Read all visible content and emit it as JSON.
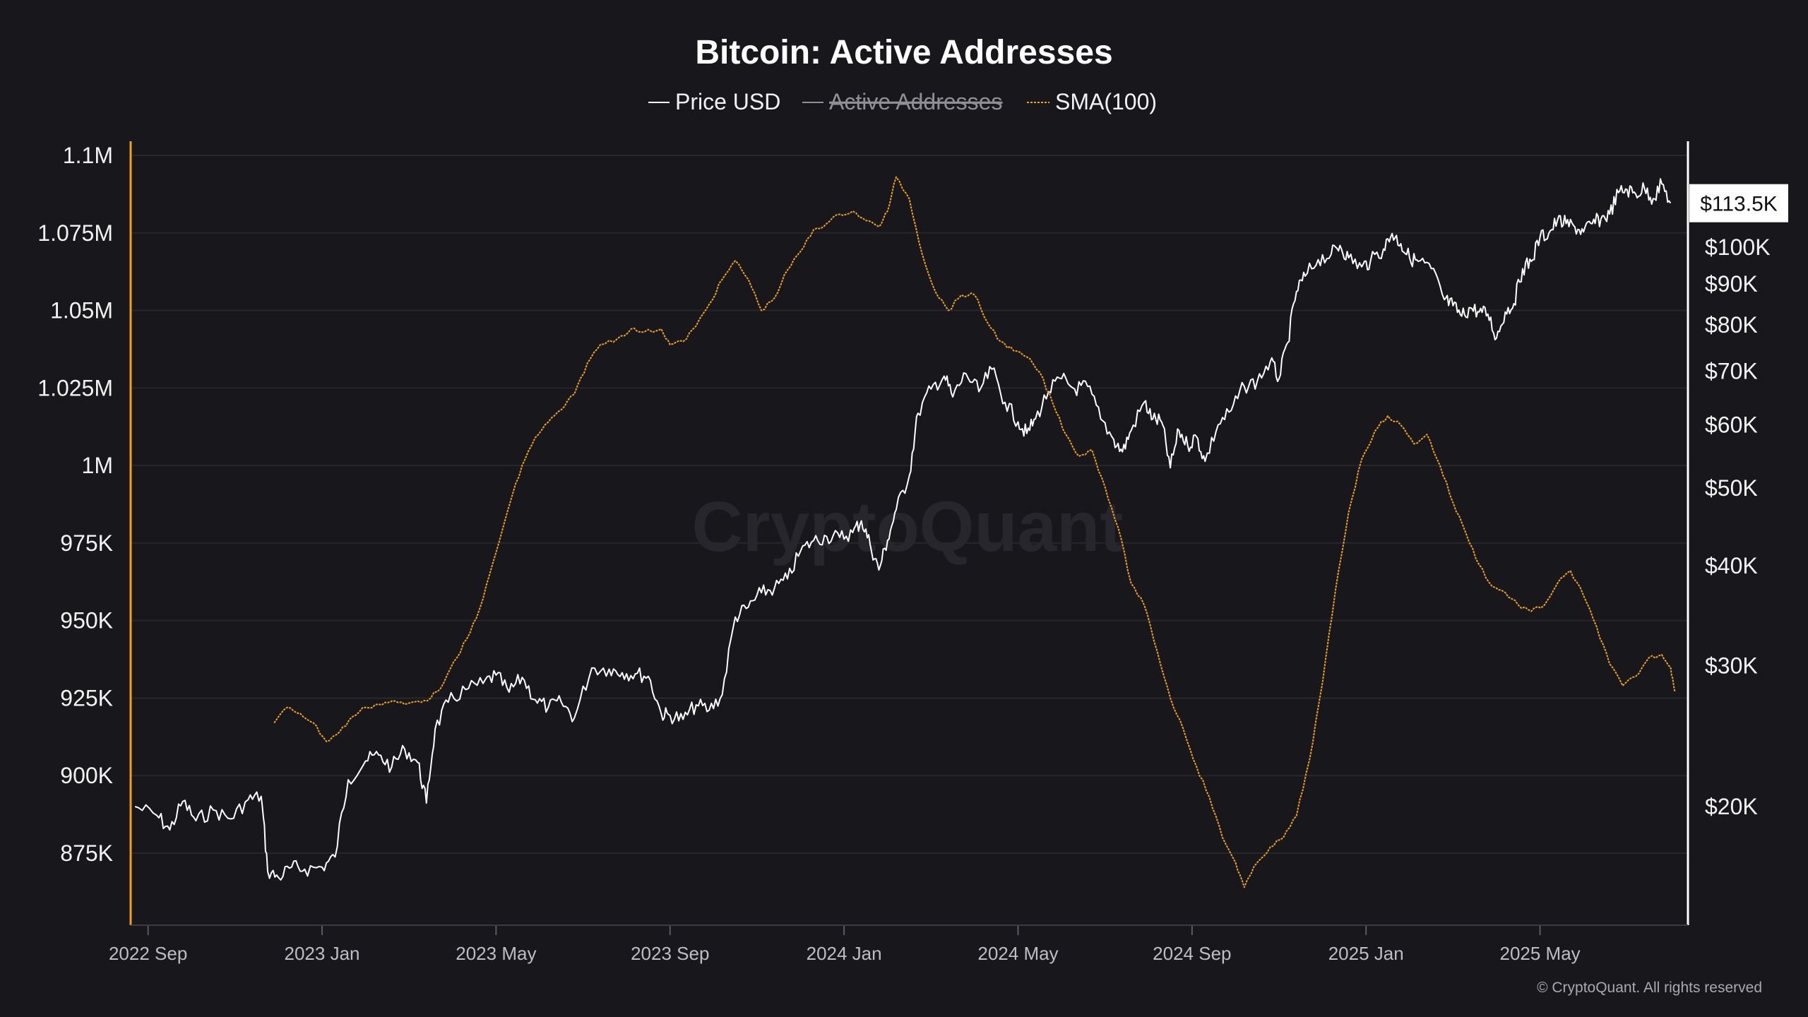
{
  "chart_data": {
    "type": "line",
    "title": "Bitcoin: Active Addresses",
    "legend": [
      {
        "label": "Price USD",
        "color": "#ffffff",
        "style": "solid",
        "hidden": false
      },
      {
        "label": "Active Addresses",
        "color": "#9a9aa2",
        "style": "solid",
        "hidden": true
      },
      {
        "label": "SMA(100)",
        "color": "#f0a020",
        "style": "dashed",
        "hidden": false
      }
    ],
    "left_axis": {
      "label": "",
      "ticks": [
        "1.1M",
        "1.075M",
        "1.05M",
        "1.025M",
        "1M",
        "975K",
        "950K",
        "925K",
        "900K",
        "875K"
      ],
      "tick_values": [
        1100000,
        1075000,
        1050000,
        1025000,
        1000000,
        975000,
        950000,
        925000,
        900000,
        875000
      ],
      "range": [
        864000,
        1100000
      ],
      "color": "#f0a020"
    },
    "right_axis": {
      "scale": "log",
      "ticks": [
        "$100K",
        "$90K",
        "$80K",
        "$70K",
        "$60K",
        "$50K",
        "$40K",
        "$30K",
        "$20K"
      ],
      "tick_values": [
        100000,
        90000,
        80000,
        70000,
        60000,
        50000,
        40000,
        30000,
        20000
      ],
      "current_value_label": "$113.5K",
      "current_value": 113500
    },
    "x_axis": {
      "ticks": [
        "2022 Sep",
        "2023 Jan",
        "2023 May",
        "2023 Sep",
        "2024 Jan",
        "2024 May",
        "2024 Sep",
        "2025 Jan",
        "2025 May"
      ],
      "tick_months": [
        0,
        4,
        8,
        12,
        16,
        20,
        24,
        28,
        32
      ],
      "range_months": [
        -0.4,
        35.4
      ],
      "unit": "months since 2022 Sep"
    },
    "series": [
      {
        "name": "Price USD",
        "axis": "right",
        "color": "#ffffff",
        "points": [
          [
            -0.3,
            20000
          ],
          [
            0.2,
            19500
          ],
          [
            0.5,
            18700
          ],
          [
            0.8,
            20300
          ],
          [
            1.1,
            19200
          ],
          [
            1.5,
            19800
          ],
          [
            1.9,
            19300
          ],
          [
            2.3,
            20400
          ],
          [
            2.6,
            20600
          ],
          [
            2.75,
            16600
          ],
          [
            3.0,
            16300
          ],
          [
            3.3,
            16800
          ],
          [
            3.6,
            16700
          ],
          [
            4.0,
            16800
          ],
          [
            4.3,
            17300
          ],
          [
            4.6,
            21600
          ],
          [
            5.0,
            22800
          ],
          [
            5.3,
            23200
          ],
          [
            5.6,
            22400
          ],
          [
            5.9,
            23600
          ],
          [
            6.2,
            22700
          ],
          [
            6.4,
            20200
          ],
          [
            6.6,
            25000
          ],
          [
            6.9,
            27000
          ],
          [
            7.3,
            28000
          ],
          [
            7.7,
            28500
          ],
          [
            8.0,
            29200
          ],
          [
            8.3,
            27800
          ],
          [
            8.6,
            29000
          ],
          [
            8.9,
            27200
          ],
          [
            9.2,
            26600
          ],
          [
            9.5,
            27000
          ],
          [
            9.8,
            25800
          ],
          [
            10.2,
            29800
          ],
          [
            10.6,
            29700
          ],
          [
            10.9,
            29400
          ],
          [
            11.2,
            29300
          ],
          [
            11.5,
            29100
          ],
          [
            11.8,
            26100
          ],
          [
            12.0,
            26000
          ],
          [
            12.3,
            25700
          ],
          [
            12.6,
            26800
          ],
          [
            12.9,
            26400
          ],
          [
            13.2,
            27600
          ],
          [
            13.5,
            34500
          ],
          [
            13.8,
            35500
          ],
          [
            14.1,
            37000
          ],
          [
            14.4,
            37500
          ],
          [
            14.7,
            38500
          ],
          [
            15.0,
            41700
          ],
          [
            15.3,
            43000
          ],
          [
            15.6,
            43500
          ],
          [
            15.9,
            43400
          ],
          [
            16.2,
            44000
          ],
          [
            16.4,
            45500
          ],
          [
            16.6,
            42500
          ],
          [
            16.8,
            39500
          ],
          [
            17.0,
            43000
          ],
          [
            17.2,
            47000
          ],
          [
            17.5,
            51800
          ],
          [
            17.7,
            62000
          ],
          [
            18.0,
            66500
          ],
          [
            18.3,
            69000
          ],
          [
            18.5,
            65000
          ],
          [
            18.8,
            69500
          ],
          [
            19.1,
            66000
          ],
          [
            19.4,
            70400
          ],
          [
            19.7,
            64000
          ],
          [
            20.0,
            60500
          ],
          [
            20.2,
            58500
          ],
          [
            20.4,
            61000
          ],
          [
            20.7,
            66000
          ],
          [
            21.0,
            68500
          ],
          [
            21.3,
            66500
          ],
          [
            21.6,
            67000
          ],
          [
            21.9,
            61000
          ],
          [
            22.2,
            57500
          ],
          [
            22.4,
            55500
          ],
          [
            22.6,
            59000
          ],
          [
            22.9,
            64000
          ],
          [
            23.1,
            61000
          ],
          [
            23.3,
            60500
          ],
          [
            23.5,
            53000
          ],
          [
            23.7,
            59000
          ],
          [
            23.9,
            56500
          ],
          [
            24.1,
            58000
          ],
          [
            24.3,
            54000
          ],
          [
            24.6,
            60000
          ],
          [
            24.9,
            62500
          ],
          [
            25.2,
            67000
          ],
          [
            25.5,
            68000
          ],
          [
            25.8,
            72000
          ],
          [
            26.0,
            68500
          ],
          [
            26.2,
            76000
          ],
          [
            26.4,
            88000
          ],
          [
            26.6,
            92000
          ],
          [
            26.9,
            96500
          ],
          [
            27.2,
            98000
          ],
          [
            27.4,
            100500
          ],
          [
            27.6,
            97000
          ],
          [
            27.9,
            94500
          ],
          [
            28.1,
            96000
          ],
          [
            28.4,
            99500
          ],
          [
            28.6,
            104000
          ],
          [
            28.8,
            101000
          ],
          [
            29.0,
            97000
          ],
          [
            29.2,
            96000
          ],
          [
            29.5,
            94000
          ],
          [
            29.8,
            86000
          ],
          [
            30.0,
            84500
          ],
          [
            30.2,
            82000
          ],
          [
            30.4,
            84000
          ],
          [
            30.6,
            83000
          ],
          [
            30.8,
            82500
          ],
          [
            31.0,
            77000
          ],
          [
            31.2,
            83000
          ],
          [
            31.4,
            85000
          ],
          [
            31.6,
            94000
          ],
          [
            31.8,
            96000
          ],
          [
            32.0,
            103000
          ],
          [
            32.2,
            104000
          ],
          [
            32.4,
            108000
          ],
          [
            32.6,
            107000
          ],
          [
            32.8,
            106000
          ],
          [
            33.0,
            104500
          ],
          [
            33.2,
            107000
          ],
          [
            33.4,
            108500
          ],
          [
            33.6,
            110000
          ],
          [
            33.8,
            117000
          ],
          [
            34.0,
            118000
          ],
          [
            34.2,
            116500
          ],
          [
            34.4,
            118500
          ],
          [
            34.6,
            115000
          ],
          [
            34.8,
            120000
          ],
          [
            35.0,
            113500
          ]
        ]
      },
      {
        "name": "SMA(100)",
        "axis": "left",
        "color": "#f0a020",
        "points": [
          [
            2.9,
            917000
          ],
          [
            3.2,
            922000
          ],
          [
            3.5,
            920000
          ],
          [
            3.8,
            917000
          ],
          [
            4.1,
            911000
          ],
          [
            4.4,
            914000
          ],
          [
            4.7,
            919000
          ],
          [
            5.0,
            922000
          ],
          [
            5.3,
            923000
          ],
          [
            5.6,
            924000
          ],
          [
            5.9,
            923000
          ],
          [
            6.2,
            924000
          ],
          [
            6.5,
            925000
          ],
          [
            6.8,
            930000
          ],
          [
            7.1,
            938000
          ],
          [
            7.4,
            946000
          ],
          [
            7.7,
            957000
          ],
          [
            8.0,
            972000
          ],
          [
            8.3,
            987000
          ],
          [
            8.6,
            1000000
          ],
          [
            8.9,
            1009000
          ],
          [
            9.2,
            1014000
          ],
          [
            9.5,
            1018000
          ],
          [
            9.8,
            1023000
          ],
          [
            10.1,
            1033000
          ],
          [
            10.4,
            1039000
          ],
          [
            10.8,
            1041000
          ],
          [
            11.1,
            1044000
          ],
          [
            11.4,
            1043000
          ],
          [
            11.8,
            1044000
          ],
          [
            12.0,
            1039000
          ],
          [
            12.3,
            1040000
          ],
          [
            12.6,
            1045000
          ],
          [
            12.9,
            1052000
          ],
          [
            13.2,
            1060000
          ],
          [
            13.5,
            1066000
          ],
          [
            13.8,
            1060000
          ],
          [
            14.1,
            1050000
          ],
          [
            14.4,
            1054000
          ],
          [
            14.7,
            1063000
          ],
          [
            15.0,
            1069000
          ],
          [
            15.3,
            1076000
          ],
          [
            15.6,
            1078000
          ],
          [
            15.9,
            1081000
          ],
          [
            16.2,
            1082000
          ],
          [
            16.5,
            1079000
          ],
          [
            16.8,
            1077000
          ],
          [
            17.0,
            1082000
          ],
          [
            17.2,
            1093000
          ],
          [
            17.5,
            1086000
          ],
          [
            17.8,
            1068000
          ],
          [
            18.1,
            1056000
          ],
          [
            18.4,
            1050000
          ],
          [
            18.7,
            1055000
          ],
          [
            19.0,
            1055000
          ],
          [
            19.3,
            1046000
          ],
          [
            19.6,
            1040000
          ],
          [
            19.9,
            1037000
          ],
          [
            20.2,
            1035000
          ],
          [
            20.5,
            1030000
          ],
          [
            20.8,
            1020000
          ],
          [
            21.1,
            1010000
          ],
          [
            21.4,
            1003000
          ],
          [
            21.7,
            1005000
          ],
          [
            22.0,
            993000
          ],
          [
            22.3,
            980000
          ],
          [
            22.6,
            962000
          ],
          [
            22.9,
            955000
          ],
          [
            23.2,
            940000
          ],
          [
            23.5,
            925000
          ],
          [
            23.8,
            915000
          ],
          [
            24.1,
            903000
          ],
          [
            24.4,
            893000
          ],
          [
            24.7,
            880000
          ],
          [
            25.0,
            872000
          ],
          [
            25.2,
            864000
          ],
          [
            25.5,
            872000
          ],
          [
            25.8,
            877000
          ],
          [
            26.1,
            880000
          ],
          [
            26.4,
            887000
          ],
          [
            26.7,
            905000
          ],
          [
            27.0,
            930000
          ],
          [
            27.3,
            960000
          ],
          [
            27.6,
            985000
          ],
          [
            27.9,
            1002000
          ],
          [
            28.2,
            1011000
          ],
          [
            28.5,
            1016000
          ],
          [
            28.8,
            1013000
          ],
          [
            29.1,
            1007000
          ],
          [
            29.4,
            1010000
          ],
          [
            29.7,
            1000000
          ],
          [
            30.0,
            988000
          ],
          [
            30.3,
            978000
          ],
          [
            30.6,
            968000
          ],
          [
            30.9,
            961000
          ],
          [
            31.2,
            959000
          ],
          [
            31.5,
            955000
          ],
          [
            31.8,
            953000
          ],
          [
            32.1,
            955000
          ],
          [
            32.4,
            962000
          ],
          [
            32.7,
            966000
          ],
          [
            33.0,
            958000
          ],
          [
            33.3,
            948000
          ],
          [
            33.6,
            936000
          ],
          [
            33.9,
            929000
          ],
          [
            34.2,
            932000
          ],
          [
            34.5,
            938000
          ],
          [
            34.8,
            939000
          ],
          [
            35.0,
            935000
          ],
          [
            35.1,
            927000
          ]
        ]
      }
    ],
    "watermark": "CryptoQuant",
    "copyright": "© CryptoQuant. All rights reserved"
  }
}
